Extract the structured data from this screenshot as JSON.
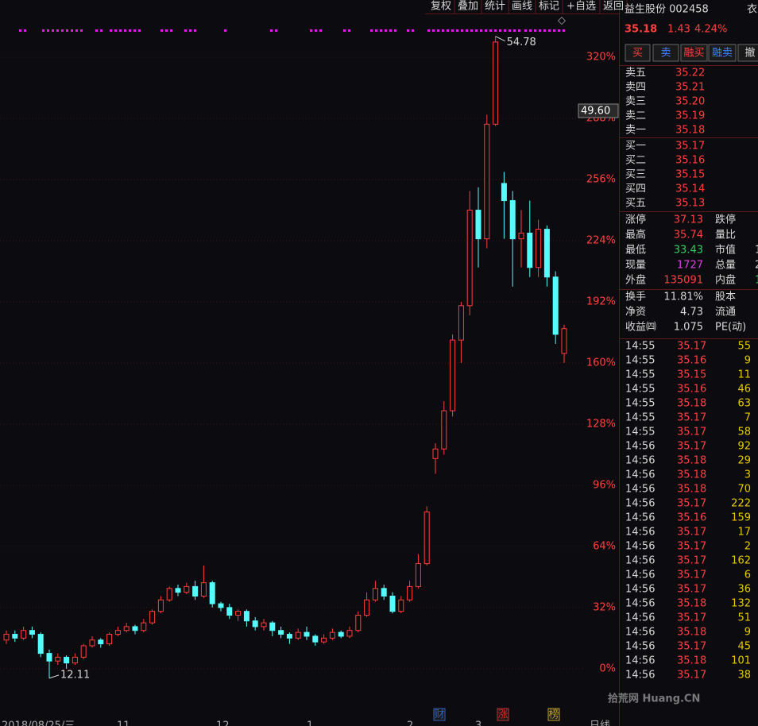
{
  "toolbar": [
    "复权",
    "叠加",
    "统计",
    "画线",
    "标记",
    "+自选",
    "返回"
  ],
  "chart_data": {
    "type": "candlestick",
    "ylim": [
      -30,
      350
    ],
    "yticks": [
      {
        "value": 0,
        "label": "0%"
      },
      {
        "value": 32,
        "label": "32%"
      },
      {
        "value": 64,
        "label": "64%"
      },
      {
        "value": 96,
        "label": "96%"
      },
      {
        "value": 128,
        "label": "128%"
      },
      {
        "value": 160,
        "label": "160%"
      },
      {
        "value": 192,
        "label": "192%"
      },
      {
        "value": 224,
        "label": "224%"
      },
      {
        "value": 256,
        "label": "256%"
      },
      {
        "value": 288,
        "label": "288%"
      },
      {
        "value": 320,
        "label": "320%"
      }
    ],
    "colors": {
      "up": "#ff3c3c",
      "down": "#54fcfc"
    },
    "ohlc": {
      "open": [
        15,
        18,
        16,
        20,
        18,
        8,
        4,
        6,
        3,
        6,
        12,
        15,
        13,
        18,
        20,
        22,
        20,
        24,
        30,
        36,
        42,
        40,
        43,
        38,
        45,
        34,
        32,
        28,
        30,
        25,
        22,
        24,
        20,
        18,
        16,
        19,
        17,
        14,
        16,
        19,
        17,
        20,
        28,
        36,
        42,
        38,
        30,
        36,
        43,
        55,
        110,
        115,
        135,
        172,
        190,
        240,
        225,
        285,
        254,
        245,
        225,
        228,
        210,
        230,
        205,
        165
      ],
      "close": [
        18,
        16,
        20,
        18,
        8,
        4,
        6,
        3,
        6,
        12,
        15,
        13,
        18,
        20,
        22,
        20,
        24,
        30,
        36,
        42,
        40,
        43,
        38,
        45,
        34,
        32,
        28,
        30,
        25,
        22,
        24,
        20,
        18,
        16,
        19,
        17,
        14,
        16,
        19,
        17,
        20,
        28,
        36,
        42,
        38,
        30,
        36,
        43,
        55,
        82,
        115,
        135,
        172,
        190,
        240,
        225,
        285,
        328,
        245,
        225,
        228,
        210,
        230,
        205,
        175,
        178
      ],
      "high": [
        20,
        20,
        22,
        22,
        19,
        10,
        8,
        7,
        8,
        13,
        17,
        16,
        19,
        22,
        24,
        23,
        26,
        31,
        38,
        43,
        44,
        45,
        46,
        54,
        46,
        35,
        34,
        31,
        31,
        27,
        26,
        25,
        22,
        19,
        21,
        22,
        18,
        18,
        21,
        20,
        22,
        30,
        40,
        46,
        44,
        40,
        38,
        46,
        60,
        85,
        118,
        140,
        175,
        192,
        250,
        252,
        290,
        331,
        260,
        250,
        240,
        245,
        235,
        232,
        208,
        180
      ],
      "low": [
        13,
        14,
        15,
        16,
        6,
        -5,
        2,
        0,
        2,
        5,
        11,
        11,
        12,
        17,
        19,
        18,
        19,
        23,
        29,
        35,
        38,
        39,
        36,
        37,
        32,
        30,
        26,
        25,
        22,
        20,
        20,
        17,
        16,
        13,
        15,
        15,
        12,
        13,
        15,
        16,
        16,
        19,
        27,
        35,
        36,
        29,
        29,
        35,
        42,
        54,
        102,
        112,
        132,
        160,
        185,
        210,
        220,
        284,
        225,
        200,
        210,
        205,
        205,
        200,
        170,
        160
      ]
    },
    "high_label": "54.78",
    "low_label": "12.11",
    "price_tag": "49.60",
    "event_markers": [
      "财",
      "涨",
      "榜"
    ],
    "x_labels": [
      "2018/08/25/三",
      "11",
      "12",
      "1",
      "2",
      "3"
    ],
    "period": "日线"
  },
  "quote": {
    "name": "益生股份 002458",
    "extra": "衣",
    "price": "35.18",
    "change": "1.43",
    "change_pct": "4.24%",
    "buttons": [
      "买",
      "卖",
      "融买",
      "融卖",
      "撤"
    ],
    "asks": [
      [
        "卖五",
        "35.22"
      ],
      [
        "卖四",
        "35.21"
      ],
      [
        "卖三",
        "35.20"
      ],
      [
        "卖二",
        "35.19"
      ],
      [
        "卖一",
        "35.18"
      ]
    ],
    "bids": [
      [
        "买一",
        "35.17"
      ],
      [
        "买二",
        "35.16"
      ],
      [
        "买三",
        "35.15"
      ],
      [
        "买四",
        "35.14"
      ],
      [
        "买五",
        "35.13"
      ]
    ],
    "stats": [
      [
        "涨停",
        "37.13",
        "跌停",
        ""
      ],
      [
        "最高",
        "35.74",
        "量比",
        ""
      ],
      [
        "最低",
        "33.43",
        "市值",
        "1"
      ],
      [
        "现量",
        "1727",
        "总量",
        "2"
      ],
      [
        "外盘",
        "135091",
        "内盘",
        "1"
      ]
    ],
    "stats2": [
      [
        "换手",
        "11.81%",
        "股本"
      ],
      [
        "净资",
        "4.73",
        "流通"
      ],
      [
        "收益㈣",
        "1.075",
        "PE(动)"
      ]
    ],
    "trades": [
      [
        "14:55",
        "35.17",
        "55"
      ],
      [
        "14:55",
        "35.16",
        "9"
      ],
      [
        "14:55",
        "35.15",
        "11"
      ],
      [
        "14:55",
        "35.16",
        "46"
      ],
      [
        "14:55",
        "35.18",
        "63"
      ],
      [
        "14:55",
        "35.17",
        "7"
      ],
      [
        "14:55",
        "35.17",
        "58"
      ],
      [
        "14:56",
        "35.17",
        "92"
      ],
      [
        "14:56",
        "35.18",
        "29"
      ],
      [
        "14:56",
        "35.18",
        "3"
      ],
      [
        "14:56",
        "35.18",
        "70"
      ],
      [
        "14:56",
        "35.17",
        "222"
      ],
      [
        "14:56",
        "35.16",
        "159"
      ],
      [
        "14:56",
        "35.17",
        "17"
      ],
      [
        "14:56",
        "35.17",
        "2"
      ],
      [
        "14:56",
        "35.17",
        "162"
      ],
      [
        "14:56",
        "35.17",
        "6"
      ],
      [
        "14:56",
        "35.17",
        "36"
      ],
      [
        "14:56",
        "35.18",
        "132"
      ],
      [
        "14:56",
        "35.17",
        "51"
      ],
      [
        "14:56",
        "35.18",
        "9"
      ],
      [
        "14:56",
        "35.17",
        "45"
      ],
      [
        "14:56",
        "35.18",
        "101"
      ],
      [
        "14:56",
        "35.17",
        "38"
      ]
    ],
    "watermark": "拾荒网 Huang.CN"
  }
}
